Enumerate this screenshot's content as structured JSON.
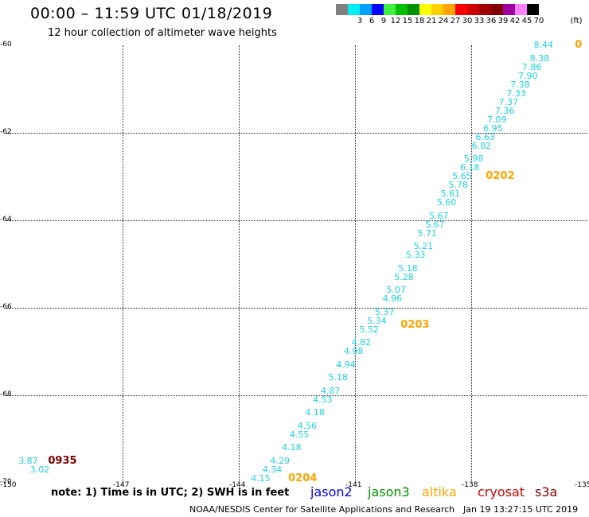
{
  "header": {
    "title": "00:00 – 11:59 UTC 01/18/2019",
    "subtitle": "12 hour collection of altimeter wave heights"
  },
  "legend": {
    "swatches": [
      {
        "color": "#808080",
        "label": ""
      },
      {
        "color": "#00eeee",
        "label": "3"
      },
      {
        "color": "#00a0ff",
        "label": "6"
      },
      {
        "color": "#0000ff",
        "label": "9"
      },
      {
        "color": "#40f040",
        "label": "12"
      },
      {
        "color": "#00c000",
        "label": "15"
      },
      {
        "color": "#009000",
        "label": "18"
      },
      {
        "color": "#ffff00",
        "label": "21"
      },
      {
        "color": "#ffd000",
        "label": "24"
      },
      {
        "color": "#ffa500",
        "label": "27"
      },
      {
        "color": "#ff0000",
        "label": "30"
      },
      {
        "color": "#d00000",
        "label": "33"
      },
      {
        "color": "#a00000",
        "label": "36"
      },
      {
        "color": "#800000",
        "label": "39"
      },
      {
        "color": "#a000a0",
        "label": "42"
      },
      {
        "color": "#ff80ff",
        "label": "45"
      },
      {
        "color": "#000000",
        "label": "70"
      }
    ],
    "unit": "(ft)"
  },
  "axes": {
    "y_labels": [
      "-60",
      "-62",
      "-64",
      "-66",
      "-68",
      "-70"
    ],
    "x_labels": [
      "-150",
      "-147",
      "-144",
      "-141",
      "-138",
      "-135"
    ]
  },
  "chart_data": {
    "type": "scatter",
    "title": "12 hour collection of altimeter wave heights",
    "xlim": [
      -150,
      -135
    ],
    "ylim": [
      -70,
      -60
    ],
    "grid": true,
    "series": [
      {
        "name": "altimeter SWH (ft)",
        "points": [
          {
            "lon": -136.1,
            "lat": -60.0,
            "v": "8.44"
          },
          {
            "lon": -136.2,
            "lat": -60.3,
            "v": "8.38"
          },
          {
            "lon": -136.4,
            "lat": -60.5,
            "v": "7.86"
          },
          {
            "lon": -136.5,
            "lat": -60.7,
            "v": "7.90"
          },
          {
            "lon": -136.7,
            "lat": -60.9,
            "v": "7.38"
          },
          {
            "lon": -136.8,
            "lat": -61.1,
            "v": "7.33"
          },
          {
            "lon": -137.0,
            "lat": -61.3,
            "v": "7.37"
          },
          {
            "lon": -137.1,
            "lat": -61.5,
            "v": "7.36"
          },
          {
            "lon": -137.3,
            "lat": -61.7,
            "v": "7.09"
          },
          {
            "lon": -137.4,
            "lat": -61.9,
            "v": "6.95"
          },
          {
            "lon": -137.6,
            "lat": -62.1,
            "v": "6.63"
          },
          {
            "lon": -137.7,
            "lat": -62.3,
            "v": "6.82"
          },
          {
            "lon": -137.9,
            "lat": -62.6,
            "v": "5.98"
          },
          {
            "lon": -138.0,
            "lat": -62.8,
            "v": "6.18"
          },
          {
            "lon": -138.2,
            "lat": -63.0,
            "v": "5.65"
          },
          {
            "lon": -138.3,
            "lat": -63.2,
            "v": "5.78"
          },
          {
            "lon": -138.5,
            "lat": -63.4,
            "v": "5.61"
          },
          {
            "lon": -138.6,
            "lat": -63.6,
            "v": "5.60"
          },
          {
            "lon": -138.8,
            "lat": -63.9,
            "v": "5.67"
          },
          {
            "lon": -138.9,
            "lat": -64.1,
            "v": "5.67"
          },
          {
            "lon": -139.1,
            "lat": -64.3,
            "v": "5.71"
          },
          {
            "lon": -139.2,
            "lat": -64.6,
            "v": "5.21"
          },
          {
            "lon": -139.4,
            "lat": -64.8,
            "v": "5.33"
          },
          {
            "lon": -139.6,
            "lat": -65.1,
            "v": "5.18"
          },
          {
            "lon": -139.7,
            "lat": -65.3,
            "v": "5.28"
          },
          {
            "lon": -139.9,
            "lat": -65.6,
            "v": "5.07"
          },
          {
            "lon": -140.0,
            "lat": -65.8,
            "v": "4.96"
          },
          {
            "lon": -140.2,
            "lat": -66.1,
            "v": "5.37"
          },
          {
            "lon": -140.4,
            "lat": -66.3,
            "v": "5.34"
          },
          {
            "lon": -140.6,
            "lat": -66.5,
            "v": "5.52"
          },
          {
            "lon": -140.8,
            "lat": -66.8,
            "v": "4.82"
          },
          {
            "lon": -141.0,
            "lat": -67.0,
            "v": "4.98"
          },
          {
            "lon": -141.2,
            "lat": -67.3,
            "v": "4.94"
          },
          {
            "lon": -141.4,
            "lat": -67.6,
            "v": "5.18"
          },
          {
            "lon": -141.6,
            "lat": -67.9,
            "v": "4.87"
          },
          {
            "lon": -141.8,
            "lat": -68.1,
            "v": "4.53"
          },
          {
            "lon": -142.0,
            "lat": -68.4,
            "v": "4.18"
          },
          {
            "lon": -142.2,
            "lat": -68.7,
            "v": "4.56"
          },
          {
            "lon": -142.4,
            "lat": -68.9,
            "v": "4.55"
          },
          {
            "lon": -142.6,
            "lat": -69.2,
            "v": "4.18"
          },
          {
            "lon": -142.9,
            "lat": -69.5,
            "v": "4.29"
          },
          {
            "lon": -143.1,
            "lat": -69.7,
            "v": "4.34"
          },
          {
            "lon": -143.4,
            "lat": -69.9,
            "v": "4.15"
          },
          {
            "lon": -149.4,
            "lat": -69.5,
            "v": "3.87"
          },
          {
            "lon": -149.1,
            "lat": -69.7,
            "v": "3.02"
          }
        ]
      }
    ],
    "time_labels": [
      {
        "text": "0935",
        "lon": -148.8,
        "lat": -69.5,
        "color": "#800000"
      },
      {
        "text": "0204",
        "lon": -142.6,
        "lat": -69.9,
        "color": "#ffa500"
      },
      {
        "text": "0203",
        "lon": -139.7,
        "lat": -66.4,
        "color": "#ffa500"
      },
      {
        "text": "0202",
        "lon": -137.5,
        "lat": -63.0,
        "color": "#ffa500"
      },
      {
        "text": "0",
        "lon": -135.2,
        "lat": -60.0,
        "color": "#ffa500"
      }
    ]
  },
  "footer": {
    "note": "note: 1) Time is in UTC; 2) SWH is in feet",
    "satellites": [
      {
        "name": "jason2",
        "color": "#0000ff"
      },
      {
        "name": "jason3",
        "color": "#009000"
      },
      {
        "name": "altika",
        "color": "#ffa500"
      },
      {
        "name": "cryosat",
        "color": "#d00000"
      },
      {
        "name": "s3a",
        "color": "#800000"
      }
    ],
    "credit": "NOAA/NESDIS Center for Satellite Applications and Research",
    "timestamp": "Jan 19 13:27:15 UTC 2019"
  }
}
